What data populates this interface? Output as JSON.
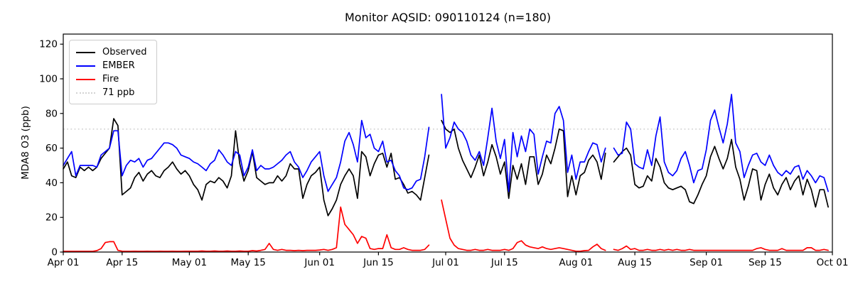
{
  "chart": {
    "title": "Monitor AQSID: 090110124 (n=180)",
    "ylabel": "MDA8 O3 (ppb)",
    "colors": {
      "observed": "#000000",
      "ember": "#0000ff",
      "fire": "#ff0000",
      "threshold": "#d3d3d3",
      "axes": "#000000",
      "background": "#ffffff"
    },
    "legend": [
      {
        "label": "Observed",
        "color": "#000000",
        "style": "solid"
      },
      {
        "label": "EMBER",
        "color": "#0000ff",
        "style": "solid"
      },
      {
        "label": "Fire",
        "color": "#ff0000",
        "style": "solid"
      },
      {
        "label": "71 ppb",
        "color": "#d3d3d3",
        "style": "dotted"
      }
    ]
  },
  "chart_data": {
    "type": "line",
    "title": "Monitor AQSID: 090110124 (n=180)",
    "xlabel": "",
    "ylabel": "MDA8 O3 (ppb)",
    "ylim": [
      0,
      126
    ],
    "grid": false,
    "legend_position": "upper left",
    "threshold_ppb": 71,
    "threshold_label": "71 ppb",
    "n_days_with_data": 180,
    "x_start": "Apr 01",
    "x_end": "Oct 01",
    "x_unit": "daily values, index 0 = Apr 01",
    "missing_days_note": "null = no data (about Jun 28-29 and Aug 09), hence n=180 of 183 days",
    "yticks": [
      0,
      20,
      40,
      60,
      80,
      100,
      120
    ],
    "xticks": [
      {
        "label": "Apr 01",
        "day": 0
      },
      {
        "label": "Apr 15",
        "day": 14
      },
      {
        "label": "May 01",
        "day": 30
      },
      {
        "label": "May 15",
        "day": 44
      },
      {
        "label": "Jun 01",
        "day": 61
      },
      {
        "label": "Jun 15",
        "day": 75
      },
      {
        "label": "Jul 01",
        "day": 91
      },
      {
        "label": "Jul 15",
        "day": 105
      },
      {
        "label": "Aug 01",
        "day": 122
      },
      {
        "label": "Aug 15",
        "day": 136
      },
      {
        "label": "Sep 01",
        "day": 153
      },
      {
        "label": "Sep 15",
        "day": 167
      },
      {
        "label": "Oct 01",
        "day": 183
      }
    ],
    "series": [
      {
        "name": "Observed",
        "color": "#000000",
        "style": "solid",
        "values": [
          48,
          52,
          44,
          43,
          49,
          47,
          49,
          47,
          49,
          54,
          57,
          60,
          77,
          73,
          33,
          35,
          37,
          43,
          46,
          41,
          45,
          47,
          44,
          43,
          47,
          49,
          52,
          48,
          45,
          47,
          44,
          39,
          36,
          30,
          39,
          41,
          40,
          43,
          41,
          37,
          44,
          70,
          51,
          41,
          47,
          58,
          43,
          41,
          39,
          40,
          40,
          44,
          41,
          44,
          51,
          48,
          48,
          31,
          39,
          44,
          46,
          49,
          30,
          21,
          25,
          30,
          39,
          44,
          48,
          44,
          31,
          58,
          55,
          44,
          51,
          56,
          57,
          49,
          57,
          42,
          43,
          39,
          34,
          35,
          33,
          30,
          43,
          56,
          null,
          null,
          76,
          71,
          69,
          71,
          60,
          53,
          48,
          43,
          49,
          56,
          44,
          52,
          62,
          55,
          45,
          52,
          31,
          50,
          42,
          51,
          39,
          55,
          55,
          39,
          45,
          56,
          51,
          60,
          71,
          70,
          32,
          44,
          33,
          44,
          46,
          53,
          56,
          52,
          42,
          57,
          null,
          52,
          55,
          58,
          60,
          56,
          39,
          37,
          38,
          44,
          41,
          54,
          49,
          40,
          37,
          36,
          37,
          38,
          36,
          29,
          28,
          33,
          39,
          44,
          55,
          61,
          54,
          48,
          54,
          65,
          49,
          42,
          30,
          38,
          48,
          47,
          30,
          39,
          45,
          37,
          33,
          39,
          43,
          36,
          41,
          44,
          33,
          42,
          36,
          26,
          36,
          36,
          26
        ]
      },
      {
        "name": "EMBER",
        "color": "#0000ff",
        "style": "solid",
        "values": [
          50,
          54,
          58,
          44,
          50,
          50,
          50,
          50,
          49,
          56,
          58,
          60,
          70,
          70,
          44,
          50,
          53,
          52,
          54,
          49,
          53,
          54,
          57,
          60,
          63,
          63,
          62,
          60,
          56,
          55,
          54,
          52,
          51,
          49,
          47,
          51,
          53,
          59,
          56,
          52,
          50,
          58,
          56,
          44,
          49,
          59,
          47,
          50,
          48,
          48,
          49,
          51,
          53,
          56,
          58,
          52,
          49,
          43,
          47,
          52,
          55,
          58,
          44,
          35,
          39,
          43,
          52,
          64,
          69,
          62,
          52,
          76,
          66,
          68,
          60,
          58,
          64,
          52,
          53,
          47,
          44,
          37,
          36,
          37,
          41,
          42,
          55,
          72,
          null,
          null,
          91,
          60,
          66,
          75,
          71,
          69,
          64,
          56,
          53,
          58,
          50,
          66,
          83,
          64,
          54,
          65,
          35,
          69,
          55,
          67,
          58,
          71,
          68,
          45,
          55,
          64,
          63,
          80,
          84,
          76,
          46,
          56,
          42,
          52,
          52,
          58,
          63,
          62,
          52,
          60,
          null,
          60,
          56,
          57,
          75,
          71,
          51,
          49,
          48,
          59,
          50,
          67,
          78,
          52,
          46,
          44,
          47,
          54,
          58,
          50,
          40,
          47,
          48,
          59,
          76,
          82,
          72,
          63,
          74,
          91,
          63,
          58,
          43,
          50,
          56,
          57,
          52,
          50,
          56,
          50,
          46,
          44,
          47,
          45,
          49,
          50,
          42,
          47,
          44,
          40,
          44,
          43,
          35
        ]
      },
      {
        "name": "Fire",
        "color": "#ff0000",
        "style": "solid",
        "values": [
          0.4,
          0.4,
          0.4,
          0.4,
          0.4,
          0.4,
          0.4,
          0.4,
          0.8,
          2,
          5.5,
          6,
          6,
          1,
          0.5,
          0.4,
          0.4,
          0.5,
          0.4,
          0.4,
          0.5,
          0.4,
          0.4,
          0.5,
          0.4,
          0.4,
          0.5,
          0.4,
          0.4,
          0.5,
          0.5,
          0.5,
          0.5,
          0.6,
          0.5,
          0.5,
          0.6,
          0.5,
          0.5,
          0.6,
          0.5,
          0.5,
          0.6,
          0.5,
          0.5,
          0.8,
          0.6,
          1,
          1.5,
          5,
          1.5,
          1,
          1.5,
          1,
          1,
          0.8,
          1,
          0.8,
          1,
          1,
          1,
          1.2,
          1.5,
          1,
          1.5,
          2.5,
          26,
          16,
          13,
          10,
          5,
          9,
          8,
          2,
          1.5,
          2,
          2,
          10,
          2.5,
          1.5,
          1.5,
          2.5,
          1.5,
          1,
          1,
          1,
          1.5,
          4,
          null,
          null,
          30,
          19,
          8,
          4,
          2,
          1.5,
          1,
          1,
          1.5,
          1,
          1,
          1.5,
          1,
          1,
          1,
          1.5,
          1,
          2,
          5.5,
          6.5,
          4,
          3,
          2.5,
          2,
          3,
          2,
          1.5,
          2,
          2.5,
          2,
          1.5,
          1,
          0.5,
          0.5,
          0.8,
          1,
          3,
          4.5,
          2,
          1,
          null,
          1.5,
          1,
          2,
          3.5,
          1.5,
          2,
          1,
          1,
          1.5,
          1,
          1,
          1.5,
          1,
          1.5,
          1,
          1.5,
          1,
          1,
          1.5,
          1,
          1,
          1,
          1,
          1,
          1,
          1,
          1,
          1,
          1,
          1,
          1,
          1,
          1,
          1,
          2,
          2.5,
          1.5,
          1,
          1,
          1,
          2,
          1,
          1,
          1,
          1,
          1,
          2.5,
          2.5,
          1,
          1,
          1.5,
          1
        ]
      },
      {
        "name": "71 ppb",
        "color": "#d3d3d3",
        "style": "dotted",
        "constant": 71
      }
    ]
  }
}
